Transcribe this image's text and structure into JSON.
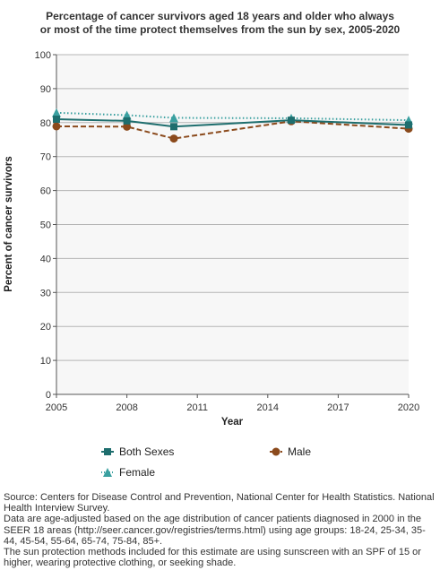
{
  "title_lines": [
    "Percentage of cancer survivors aged 18 years and older who always",
    "or most of the time protect themselves from the sun by sex, 2005-2020"
  ],
  "chart_data": {
    "type": "line",
    "title": "Percentage of cancer survivors aged 18 years and older who always or most of the time protect themselves from the sun by sex, 2005-2020",
    "xlabel": "Year",
    "ylabel": "Percent of cancer survivors",
    "xlim": [
      2005,
      2020
    ],
    "ylim": [
      0,
      100
    ],
    "xticks": [
      2005,
      2008,
      2011,
      2014,
      2017,
      2020
    ],
    "yticks": [
      0,
      10,
      20,
      30,
      40,
      50,
      60,
      70,
      80,
      90,
      100
    ],
    "grid": true,
    "legend_position": "bottom",
    "x": [
      2005,
      2008,
      2010,
      2015,
      2020
    ],
    "series": [
      {
        "name": "Both Sexes",
        "values": [
          81.0,
          80.5,
          78.8,
          80.7,
          79.3
        ],
        "color": "#1e6e6e",
        "marker": "square",
        "dash": "solid"
      },
      {
        "name": "Male",
        "values": [
          78.9,
          78.8,
          75.3,
          80.4,
          78.2
        ],
        "color": "#8b4a1c",
        "marker": "circle",
        "dash": "dashed"
      },
      {
        "name": "Female",
        "values": [
          82.9,
          82.2,
          81.4,
          81.3,
          80.7
        ],
        "color": "#3aa0a0",
        "marker": "triangle",
        "dash": "dotted"
      }
    ]
  },
  "notes": [
    "Source: Centers for Disease Control and Prevention, National Center for Health Statistics. National Health Interview Survey.",
    "Data are age-adjusted based on the age distribution of cancer patients diagnosed in 2000 in the SEER 18 areas (http://seer.cancer.gov/registries/terms.html) using age groups: 18-24, 25-34, 35-44, 45-54, 55-64, 65-74, 75-84, 85+.",
    "The sun protection methods included for this estimate are using sunscreen with an SPF of 15 or higher, wearing protective clothing, or seeking shade."
  ]
}
